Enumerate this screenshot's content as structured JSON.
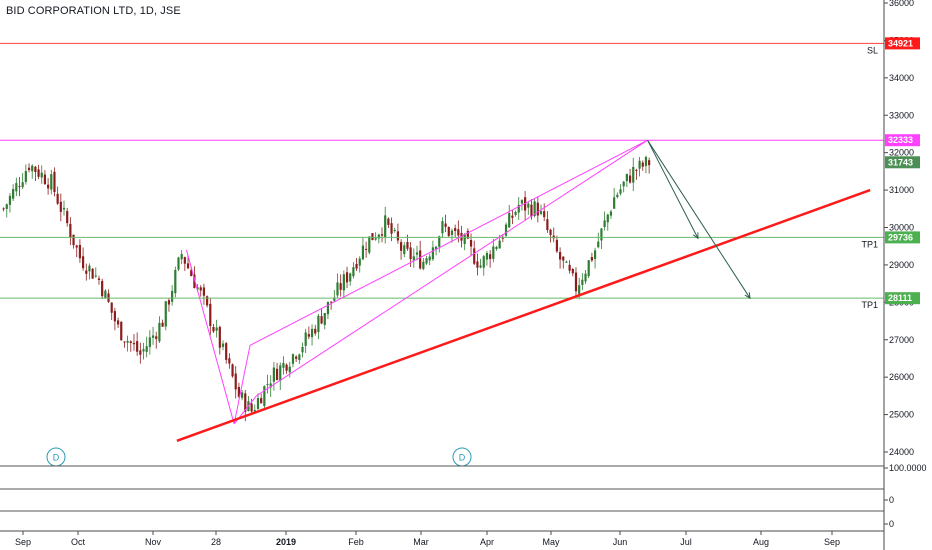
{
  "header": {
    "title": "BID CORPORATION LTD, 1D, JSE"
  },
  "colors": {
    "up": "#26a69a",
    "up_fill": "#4caf50",
    "down": "#ef5350",
    "candle_up": "#2e7d32",
    "candle_down": "#8b1d1d",
    "pattern": "#ff40ff",
    "trend": "#ff1a1a",
    "stop": "#ff4040",
    "target": "#66bb6a",
    "forecast": "#2f5d50",
    "dividend": "#2a9bb5",
    "grid": "#e0e3eb"
  },
  "chart_data": {
    "type": "candlestick",
    "title": "BID CORPORATION LTD, 1D, JSE",
    "x_tick_labels": [
      "Sep",
      "Oct",
      "Nov",
      "28",
      "2019",
      "Feb",
      "Mar",
      "Apr",
      "May",
      "Jun",
      "Jul",
      "Aug",
      "Sep"
    ],
    "y_range": [
      23600,
      36200
    ],
    "y_tick_labels": [
      "24000",
      "25000",
      "26000",
      "27000",
      "28000",
      "29000",
      "30000",
      "31000",
      "32000",
      "33000",
      "34000",
      "35000",
      "36000"
    ],
    "y_tick_values": [
      24000,
      25000,
      26000,
      27000,
      28000,
      29000,
      30000,
      31000,
      32000,
      33000,
      34000,
      35000,
      36000
    ],
    "horizontal_lines": [
      {
        "label": "SL",
        "tag": "34921",
        "value": 34921,
        "kind": "stop"
      },
      {
        "label": "",
        "tag": "32333",
        "value": 32333,
        "kind": "pattern"
      },
      {
        "label": "TP1",
        "tag": "29736",
        "value": 29736,
        "kind": "target"
      },
      {
        "label": "TP1",
        "tag": "28111",
        "value": 28111,
        "kind": "target"
      }
    ],
    "last_price": {
      "tag": "31743",
      "value": 31743
    },
    "dividend_markers": [
      "D",
      "D"
    ],
    "indicator_pane": {
      "tick_labels": [
        "100.0000",
        "0",
        "0"
      ]
    },
    "anchors": [
      {
        "date_index": 0,
        "price": 30500
      },
      {
        "date_index": 8,
        "price": 31700
      },
      {
        "date_index": 15,
        "price": 31200
      },
      {
        "date_index": 24,
        "price": 29200
      },
      {
        "date_index": 30,
        "price": 28600
      },
      {
        "date_index": 36,
        "price": 27300
      },
      {
        "date_index": 43,
        "price": 26600
      },
      {
        "date_index": 50,
        "price": 27500
      },
      {
        "date_index": 56,
        "price": 29300
      },
      {
        "date_index": 62,
        "price": 28200
      },
      {
        "date_index": 68,
        "price": 26900
      },
      {
        "date_index": 74,
        "price": 25500
      },
      {
        "date_index": 78,
        "price": 25100
      },
      {
        "date_index": 84,
        "price": 26000
      },
      {
        "date_index": 90,
        "price": 26500
      },
      {
        "date_index": 96,
        "price": 27100
      },
      {
        "date_index": 102,
        "price": 27900
      },
      {
        "date_index": 108,
        "price": 28700
      },
      {
        "date_index": 114,
        "price": 29600
      },
      {
        "date_index": 120,
        "price": 30100
      },
      {
        "date_index": 126,
        "price": 29300
      },
      {
        "date_index": 132,
        "price": 29100
      },
      {
        "date_index": 138,
        "price": 30000
      },
      {
        "date_index": 144,
        "price": 29700
      },
      {
        "date_index": 150,
        "price": 29000
      },
      {
        "date_index": 156,
        "price": 29700
      },
      {
        "date_index": 162,
        "price": 30600
      },
      {
        "date_index": 168,
        "price": 30500
      },
      {
        "date_index": 174,
        "price": 29300
      },
      {
        "date_index": 180,
        "price": 28400
      },
      {
        "date_index": 186,
        "price": 29400
      },
      {
        "date_index": 192,
        "price": 30800
      },
      {
        "date_index": 198,
        "price": 31500
      },
      {
        "date_index": 203,
        "price": 31743
      }
    ]
  }
}
